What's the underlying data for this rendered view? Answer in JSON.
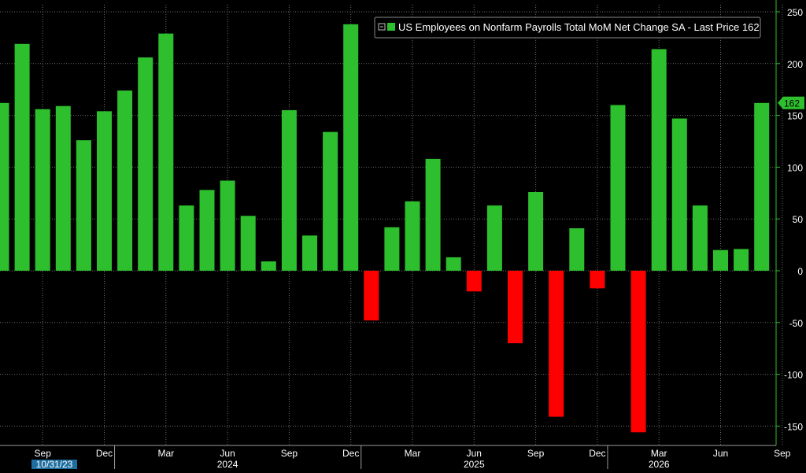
{
  "chart_data": {
    "type": "bar",
    "title": "",
    "legend": {
      "label": "US Employees on Nonfarm Payrolls Total MoM Net Change SA - Last Price 162",
      "placement": "top-right",
      "swatch_color": "#2dbf2d"
    },
    "last_price_label": "162",
    "last_value": 162,
    "ylim": [
      -165,
      255
    ],
    "y_axis_side": "right",
    "y_ticks": [
      250,
      200,
      150,
      100,
      50,
      0,
      -50,
      -100,
      -150
    ],
    "y_tick_labels": [
      "250",
      "200",
      "150",
      "100",
      "50",
      "0",
      "-50",
      "-100",
      "-150"
    ],
    "grid": true,
    "colors": {
      "positive": "#2dbf2d",
      "negative": "#ff0000",
      "axis": "#2dbf2d"
    },
    "categories": [
      "2023-07",
      "2023-08",
      "2023-09",
      "2023-10",
      "2023-11",
      "2023-12",
      "2024-01",
      "2024-02",
      "2024-03",
      "2024-04",
      "2024-05",
      "2024-06",
      "2024-07",
      "2024-08",
      "2024-09",
      "2024-10",
      "2024-11",
      "2024-12",
      "2025-01",
      "2025-02",
      "2025-03",
      "2025-04",
      "2025-05",
      "2025-06",
      "2025-07",
      "2025-08",
      "2025-09",
      "2025-10",
      "2025-11",
      "2025-12",
      "2026-01",
      "2026-02",
      "2026-03",
      "2026-04",
      "2026-05",
      "2026-06",
      "2026-07",
      "2026-08"
    ],
    "values": [
      162,
      219,
      156,
      159,
      126,
      154,
      174,
      206,
      229,
      63,
      78,
      87,
      53,
      9,
      155,
      34,
      134,
      238,
      -48,
      42,
      67,
      108,
      13,
      -20,
      63,
      -70,
      76,
      -141,
      41,
      -17,
      160,
      -156,
      214,
      147,
      63,
      20,
      21,
      162
    ],
    "x_month_labels": [
      {
        "month": "2023-09",
        "label": "Sep"
      },
      {
        "month": "2023-12",
        "label": "Dec"
      },
      {
        "month": "2024-03",
        "label": "Mar"
      },
      {
        "month": "2024-06",
        "label": "Jun"
      },
      {
        "month": "2024-09",
        "label": "Sep"
      },
      {
        "month": "2024-12",
        "label": "Dec"
      },
      {
        "month": "2025-03",
        "label": "Mar"
      },
      {
        "month": "2025-06",
        "label": "Jun"
      },
      {
        "month": "2025-09",
        "label": "Sep"
      },
      {
        "month": "2025-12",
        "label": "Dec"
      },
      {
        "month": "2026-03",
        "label": "Mar"
      },
      {
        "month": "2026-06",
        "label": "Jun"
      },
      {
        "month": "2026-09",
        "label": "Sep"
      }
    ],
    "x_year_labels": [
      {
        "month": "2024-06",
        "label": "2024"
      },
      {
        "month": "2025-06",
        "label": "2025"
      },
      {
        "month": "2026-03",
        "label": "2026"
      }
    ],
    "x_year_dividers": [
      "2024-01",
      "2025-01",
      "2026-01"
    ],
    "x_start_label": "10/31/23"
  }
}
